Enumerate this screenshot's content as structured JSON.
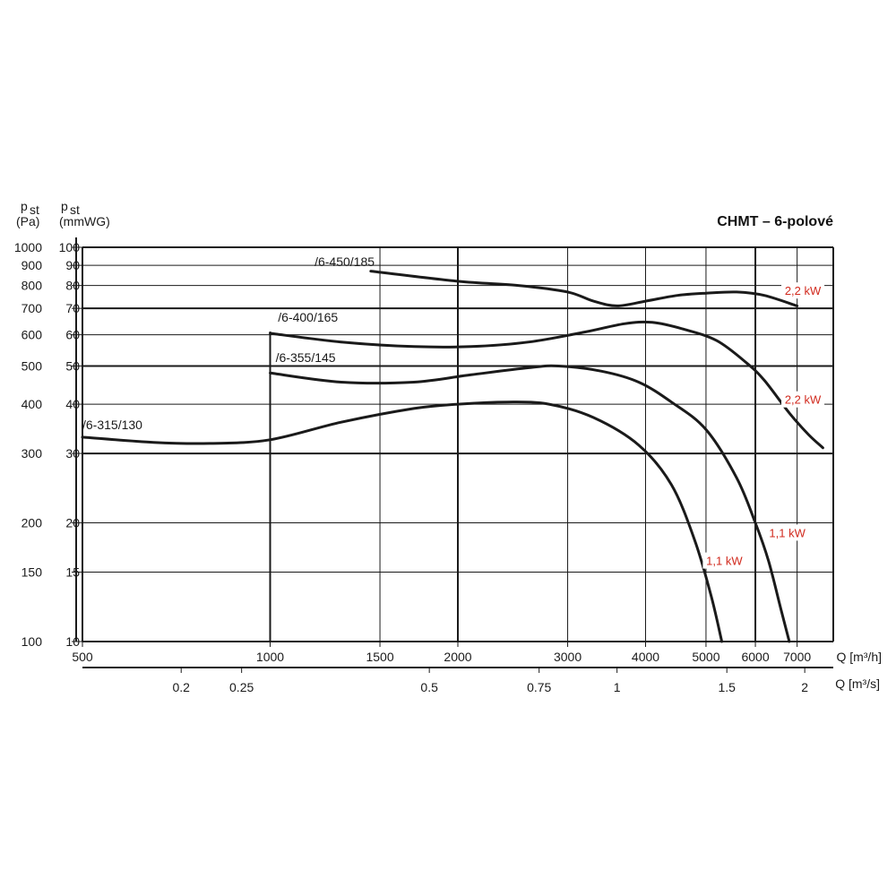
{
  "chart_data": {
    "type": "line",
    "title": "CHMT – 6-polové",
    "ylabel_left": {
      "main": "p",
      "sub": "st",
      "unit": "(Pa)"
    },
    "ylabel_right": {
      "main": "p",
      "sub": "st",
      "unit": "(mmWG)"
    },
    "xlabel_top": "Q [m³/h]",
    "xlabel_bottom": "Q [m³/s]",
    "x_scale": "log",
    "y_scale": "log",
    "xlim": [
      500,
      8000
    ],
    "ylim_mmwg": [
      10,
      100
    ],
    "x_ticks_m3h": [
      {
        "value": 500,
        "label": "500"
      },
      {
        "value": 1000,
        "label": "1000"
      },
      {
        "value": 1500,
        "label": "1500"
      },
      {
        "value": 2000,
        "label": "2000"
      },
      {
        "value": 3000,
        "label": "3000"
      },
      {
        "value": 4000,
        "label": "4000"
      },
      {
        "value": 5000,
        "label": "5000"
      },
      {
        "value": 6000,
        "label": "6000"
      },
      {
        "value": 7000,
        "label": "7000"
      }
    ],
    "x_ticks_m3s": [
      {
        "value": 0.2,
        "label": "0.2"
      },
      {
        "value": 0.25,
        "label": "0.25"
      },
      {
        "value": 0.5,
        "label": "0.5"
      },
      {
        "value": 0.75,
        "label": "0.75"
      },
      {
        "value": 1,
        "label": "1"
      },
      {
        "value": 1.5,
        "label": "1.5"
      },
      {
        "value": 2,
        "label": "2"
      }
    ],
    "y_ticks_mmwg": [
      {
        "value": 100,
        "label": "100"
      },
      {
        "value": 90,
        "label": "90"
      },
      {
        "value": 80,
        "label": "80"
      },
      {
        "value": 70,
        "label": "70"
      },
      {
        "value": 60,
        "label": "60"
      },
      {
        "value": 50,
        "label": "50"
      },
      {
        "value": 40,
        "label": "40"
      },
      {
        "value": 30,
        "label": "30"
      },
      {
        "value": 20,
        "label": "20"
      },
      {
        "value": 15,
        "label": "15"
      },
      {
        "value": 10,
        "label": "10"
      }
    ],
    "y_ticks_pa": [
      {
        "value": 100,
        "label": "1000"
      },
      {
        "value": 90,
        "label": "900"
      },
      {
        "value": 80,
        "label": "800"
      },
      {
        "value": 70,
        "label": "700"
      },
      {
        "value": 60,
        "label": "600"
      },
      {
        "value": 50,
        "label": "500"
      },
      {
        "value": 40,
        "label": "400"
      },
      {
        "value": 30,
        "label": "300"
      },
      {
        "value": 20,
        "label": "200"
      },
      {
        "value": 15,
        "label": "150"
      },
      {
        "value": 10,
        "label": "100"
      }
    ],
    "series": [
      {
        "name": "/6-450/185",
        "power_label": "2,2 kW",
        "points": [
          [
            1450,
            87
          ],
          [
            2000,
            82
          ],
          [
            2500,
            80
          ],
          [
            3000,
            77
          ],
          [
            3300,
            73
          ],
          [
            3600,
            71
          ],
          [
            4000,
            73
          ],
          [
            4500,
            75.5
          ],
          [
            5000,
            76.5
          ],
          [
            5600,
            77
          ],
          [
            6200,
            75.5
          ],
          [
            7000,
            71
          ]
        ]
      },
      {
        "name": "/6-400/165",
        "power_label": "2,2 kW",
        "points": [
          [
            1000,
            60.5
          ],
          [
            1300,
            57.5
          ],
          [
            1700,
            56
          ],
          [
            2100,
            56
          ],
          [
            2600,
            57.5
          ],
          [
            3200,
            61
          ],
          [
            3700,
            64
          ],
          [
            4100,
            64.5
          ],
          [
            4600,
            62
          ],
          [
            5200,
            58
          ],
          [
            5800,
            51
          ],
          [
            6200,
            46
          ],
          [
            6800,
            38
          ],
          [
            7300,
            33.5
          ],
          [
            7700,
            31
          ]
        ]
      },
      {
        "name": "/6-355/145",
        "power_label": "1,1 kW",
        "points": [
          [
            1000,
            48
          ],
          [
            1300,
            45.5
          ],
          [
            1700,
            45.5
          ],
          [
            2100,
            47.5
          ],
          [
            2600,
            49.5
          ],
          [
            2900,
            50
          ],
          [
            3400,
            48.5
          ],
          [
            3900,
            45.5
          ],
          [
            4400,
            40.5
          ],
          [
            5000,
            34.5
          ],
          [
            5600,
            26
          ],
          [
            6000,
            20
          ],
          [
            6300,
            16
          ],
          [
            6600,
            12
          ],
          [
            6800,
            10
          ]
        ]
      },
      {
        "name": "/6-315/130",
        "power_label": "1,1 kW",
        "points": [
          [
            500,
            33
          ],
          [
            650,
            32
          ],
          [
            800,
            31.8
          ],
          [
            1000,
            32.5
          ],
          [
            1300,
            36
          ],
          [
            1700,
            39
          ],
          [
            2000,
            40
          ],
          [
            2400,
            40.5
          ],
          [
            2800,
            40
          ],
          [
            3300,
            37
          ],
          [
            3900,
            31.5
          ],
          [
            4400,
            25
          ],
          [
            4800,
            18
          ],
          [
            5100,
            13
          ],
          [
            5300,
            10
          ]
        ]
      }
    ]
  }
}
